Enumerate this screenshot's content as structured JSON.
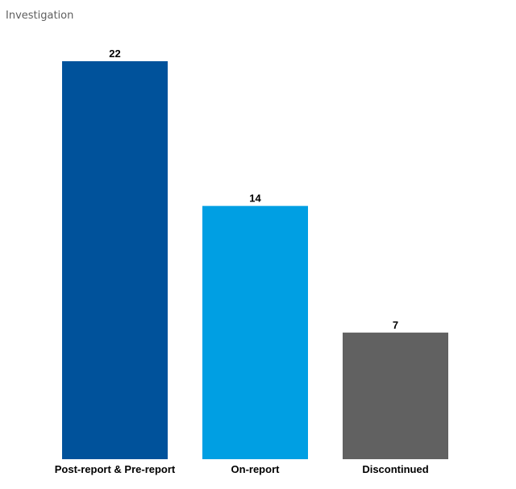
{
  "chart_data": {
    "type": "bar",
    "title": "Investigation",
    "categories": [
      "Post-report & Pre-report",
      "On-report",
      "Discontinued"
    ],
    "values": [
      22,
      14,
      7
    ],
    "colors": [
      "#00529b",
      "#009fe3",
      "#616161"
    ],
    "xlabel": "",
    "ylabel": "",
    "ylim": [
      0,
      22
    ],
    "grid": false,
    "legend": "none"
  }
}
